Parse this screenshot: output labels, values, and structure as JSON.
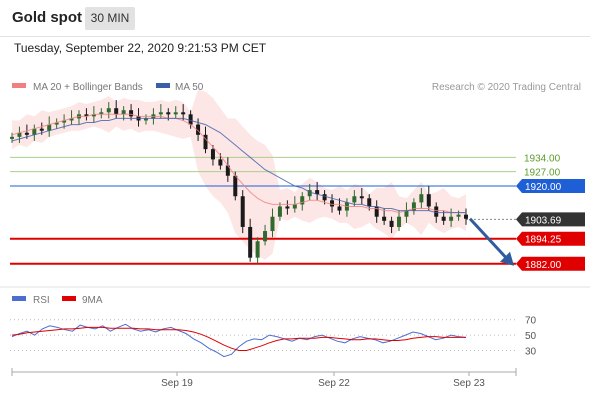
{
  "header": {
    "title": "Gold spot",
    "timeframe": "30 MIN"
  },
  "datetime": "Tuesday, September 22, 2020 9:21:53 PM CET",
  "legend": {
    "ma20_label": "MA 20 + Bollinger Bands",
    "ma50_label": "MA 50",
    "copyright": "Research © 2020 Trading Central"
  },
  "colors": {
    "ma20": "#f08080",
    "ma50": "#3a5fa8",
    "bollinger_fill": "#fde0e0",
    "resistance": "#a8d08d",
    "resistance_text": "#5a9e2a",
    "pivot": "#1f5fd6",
    "support": "#e00000",
    "last_price": "#333333",
    "candle_up": "#2f6b2f",
    "candle_down": "#1a1a1a",
    "arrow": "#2e5c9e",
    "rsi": "#4a6fd0",
    "rsi_ma": "#e00000"
  },
  "chart_data": [
    {
      "type": "candlestick",
      "title": "",
      "x_ticks": [
        "Sep 19",
        "Sep 22",
        "Sep 23"
      ],
      "ylim": [
        1878,
        1962
      ],
      "levels": [
        {
          "label": "1934.00",
          "value": 1934.0,
          "kind": "resistance"
        },
        {
          "label": "1927.00",
          "value": 1927.0,
          "kind": "resistance"
        },
        {
          "label": "1920.00",
          "value": 1920.0,
          "kind": "pivot"
        },
        {
          "label": "1903.69",
          "value": 1903.69,
          "kind": "last"
        },
        {
          "label": "1894.25",
          "value": 1894.25,
          "kind": "support"
        },
        {
          "label": "1882.00",
          "value": 1882.0,
          "kind": "support"
        }
      ],
      "path_close": [
        1944,
        1946,
        1945,
        1948,
        1947,
        1950,
        1951,
        1952,
        1953,
        1955,
        1954,
        1955,
        1956,
        1958,
        1955,
        1957,
        1954,
        1952,
        1953,
        1955,
        1956,
        1955,
        1956,
        1955,
        1950,
        1945,
        1938,
        1933,
        1930,
        1925,
        1915,
        1900,
        1885,
        1893,
        1898,
        1905,
        1910,
        1909,
        1911,
        1915,
        1918,
        1916,
        1913,
        1910,
        1908,
        1912,
        1915,
        1914,
        1910,
        1905,
        1903,
        1900,
        1905,
        1908,
        1912,
        1916,
        1910,
        1905,
        1903,
        1905,
        1906,
        1904
      ],
      "series": [
        {
          "name": "MA 20",
          "values": [
            1945,
            1946,
            1947,
            1948,
            1949,
            1950,
            1951,
            1952,
            1953,
            1954,
            1954,
            1955,
            1955,
            1955,
            1955,
            1955,
            1955,
            1954,
            1954,
            1954,
            1954,
            1953,
            1953,
            1952,
            1950,
            1947,
            1943,
            1939,
            1935,
            1930,
            1925,
            1921,
            1917,
            1914,
            1912,
            1911,
            1911,
            1911,
            1911,
            1912,
            1913,
            1913,
            1912,
            1911,
            1911,
            1910,
            1910,
            1910,
            1909,
            1909,
            1908,
            1908,
            1907,
            1908,
            1909,
            1909,
            1909,
            1908,
            1908,
            1907,
            1907,
            1907
          ]
        },
        {
          "name": "MA 50",
          "values": [
            1942,
            1943,
            1944,
            1945,
            1946,
            1947,
            1948,
            1949,
            1950,
            1950,
            1951,
            1951,
            1952,
            1952,
            1953,
            1953,
            1953,
            1953,
            1953,
            1953,
            1953,
            1953,
            1953,
            1953,
            1952,
            1951,
            1950,
            1948,
            1946,
            1943,
            1940,
            1937,
            1934,
            1931,
            1928,
            1926,
            1924,
            1922,
            1920,
            1919,
            1917,
            1916,
            1915,
            1914,
            1913,
            1912,
            1911,
            1911,
            1910,
            1910,
            1909,
            1909,
            1908,
            1908,
            1908,
            1908,
            1908,
            1907,
            1907,
            1907,
            1907,
            1907
          ]
        }
      ],
      "arrow": {
        "from": 1904,
        "to": 1882,
        "direction": "down"
      },
      "grid": false
    },
    {
      "type": "line",
      "title": "",
      "ylim": [
        15,
        80
      ],
      "y_ticks": [
        "70",
        "50",
        "30"
      ],
      "series": [
        {
          "name": "RSI",
          "values": [
            48,
            52,
            55,
            50,
            58,
            62,
            60,
            57,
            55,
            63,
            60,
            58,
            62,
            55,
            60,
            64,
            58,
            55,
            57,
            54,
            58,
            60,
            56,
            52,
            45,
            40,
            33,
            28,
            22,
            25,
            35,
            42,
            45,
            44,
            50,
            48,
            45,
            42,
            46,
            44,
            48,
            50,
            46,
            42,
            40,
            45,
            48,
            46,
            44,
            40,
            42,
            46,
            50,
            54,
            52,
            48,
            44,
            46,
            50,
            48,
            47
          ]
        },
        {
          "name": "9MA",
          "values": [
            50,
            51,
            53,
            54,
            55,
            56,
            57,
            58,
            58,
            59,
            60,
            60,
            60,
            59,
            59,
            59,
            59,
            58,
            58,
            57,
            57,
            57,
            57,
            56,
            54,
            51,
            47,
            42,
            37,
            33,
            30,
            30,
            33,
            36,
            40,
            43,
            45,
            45,
            46,
            46,
            46,
            47,
            47,
            46,
            45,
            44,
            44,
            45,
            45,
            44,
            43,
            43,
            44,
            46,
            47,
            48,
            48,
            47,
            47,
            47,
            47
          ]
        }
      ]
    }
  ]
}
